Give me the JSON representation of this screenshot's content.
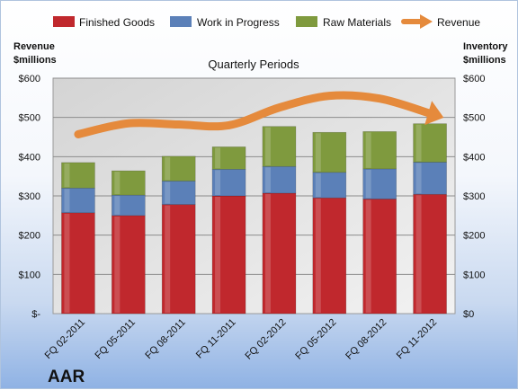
{
  "company": "AAR",
  "chart_data": {
    "type": "bar",
    "stacked": true,
    "title": "Quarterly Periods",
    "categories": [
      "FQ 02-2011",
      "FQ 05-2011",
      "FQ 08-2011",
      "FQ 11-2011",
      "FQ 02-2012",
      "FQ 05-2012",
      "FQ 08-2012",
      "FQ 11-2012"
    ],
    "series": [
      {
        "name": "Finished Goods",
        "color": "#c0282d",
        "values": [
          257,
          250,
          278,
          300,
          307,
          295,
          292,
          304
        ]
      },
      {
        "name": "Work in Progress",
        "color": "#5b80b8",
        "values": [
          63,
          52,
          60,
          68,
          68,
          65,
          77,
          82
        ]
      },
      {
        "name": "Raw Materials",
        "color": "#7f9a3e",
        "values": [
          65,
          62,
          63,
          57,
          102,
          102,
          95,
          98
        ]
      }
    ],
    "line_series": {
      "name": "Revenue",
      "color": "#e58a3c",
      "values": [
        457,
        485,
        482,
        480,
        525,
        555,
        548,
        510
      ]
    },
    "left_axis": {
      "title_line1": "Revenue",
      "title_line2": "$millions",
      "ylim": [
        0,
        600
      ],
      "ticks": [
        "$-",
        "$100",
        "$200",
        "$300",
        "$400",
        "$500",
        "$600"
      ]
    },
    "right_axis": {
      "title_line1": "Inventory",
      "title_line2": "$millions",
      "ylim": [
        0,
        600
      ],
      "ticks": [
        "$0",
        "$100",
        "$200",
        "$300",
        "$400",
        "$500",
        "$600"
      ]
    },
    "grid": true,
    "legend_position": "top"
  }
}
